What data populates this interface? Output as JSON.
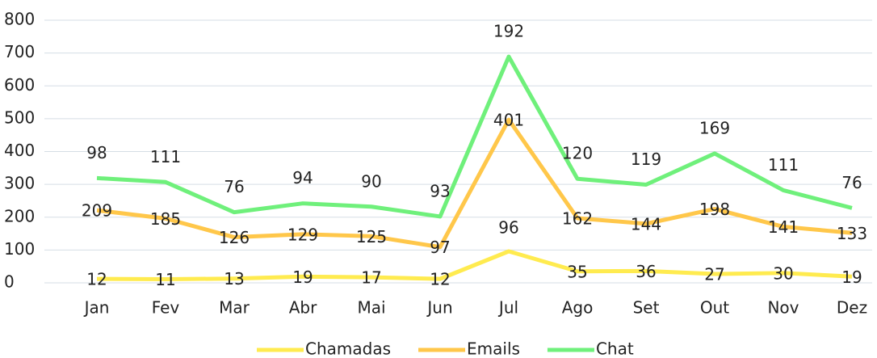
{
  "chart_data": {
    "type": "line",
    "stacked": true,
    "categories": [
      "Jan",
      "Fev",
      "Mar",
      "Abr",
      "Mai",
      "Jun",
      "Jul",
      "Ago",
      "Set",
      "Out",
      "Nov",
      "Dez"
    ],
    "series": [
      {
        "name": "Chamadas",
        "color": "#ffeb4f",
        "values": [
          12,
          11,
          13,
          19,
          17,
          12,
          96,
          35,
          36,
          27,
          30,
          19
        ]
      },
      {
        "name": "Emails",
        "color": "#ffc74a",
        "values": [
          209,
          185,
          126,
          129,
          125,
          97,
          401,
          162,
          144,
          198,
          141,
          133
        ]
      },
      {
        "name": "Chat",
        "color": "#6ff07b",
        "values": [
          98,
          111,
          76,
          94,
          90,
          93,
          192,
          120,
          119,
          169,
          111,
          76
        ]
      }
    ],
    "ylim": [
      0,
      800
    ],
    "yticks": [
      0,
      100,
      200,
      300,
      400,
      500,
      600,
      700,
      800
    ],
    "grid": true,
    "legend": "bottom"
  }
}
